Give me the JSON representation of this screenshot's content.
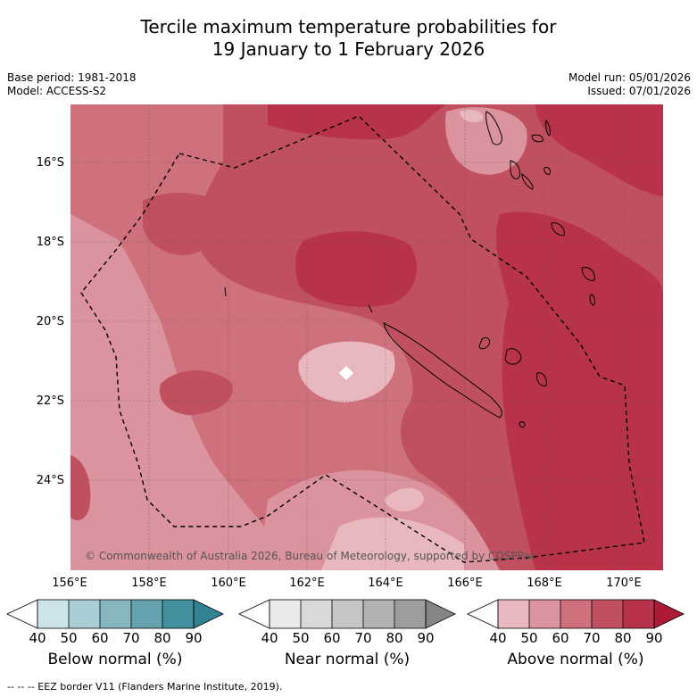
{
  "title_line1": "Tercile maximum temperature probabilities for",
  "title_line2": "19 January to 1 February 2026",
  "base_period": "Base period: 1981-2018",
  "model": "Model: ACCESS-S2",
  "model_run": "Model run: 05/01/2026",
  "issued": "Issued: 07/01/2026",
  "copyright": "© Commonwealth of Australia 2026, Bureau of Meteorology, supported by COSPPac",
  "lat_labels": [
    "16°S",
    "18°S",
    "20°S",
    "22°S",
    "24°S"
  ],
  "lon_labels": [
    "156°E",
    "158°E",
    "160°E",
    "162°E",
    "164°E",
    "166°E",
    "168°E",
    "170°E"
  ],
  "colorbars": [
    {
      "title": "Below normal (%)",
      "ticks": [
        "40",
        "50",
        "60",
        "70",
        "80",
        "90"
      ],
      "colors": [
        "#ffffff",
        "#cde4e9",
        "#a9cdd4",
        "#86b7c1",
        "#64a3ae",
        "#42909c",
        "#2f8393"
      ]
    },
    {
      "title": "Near normal (%)",
      "ticks": [
        "40",
        "50",
        "60",
        "70",
        "80",
        "90"
      ],
      "colors": [
        "#ffffff",
        "#e9e9e9",
        "#d9d9d9",
        "#c6c6c6",
        "#b2b2b2",
        "#9d9d9d",
        "#858585"
      ]
    },
    {
      "title": "Above normal (%)",
      "ticks": [
        "40",
        "50",
        "60",
        "70",
        "80",
        "90"
      ],
      "colors": [
        "#ffffff",
        "#e8b8be",
        "#db939d",
        "#ce717c",
        "#c0505f",
        "#b83349",
        "#ad1a38"
      ]
    }
  ],
  "footnote": "--  --  -- EEZ border V11 (Flanders Marine Institute, 2019)."
}
